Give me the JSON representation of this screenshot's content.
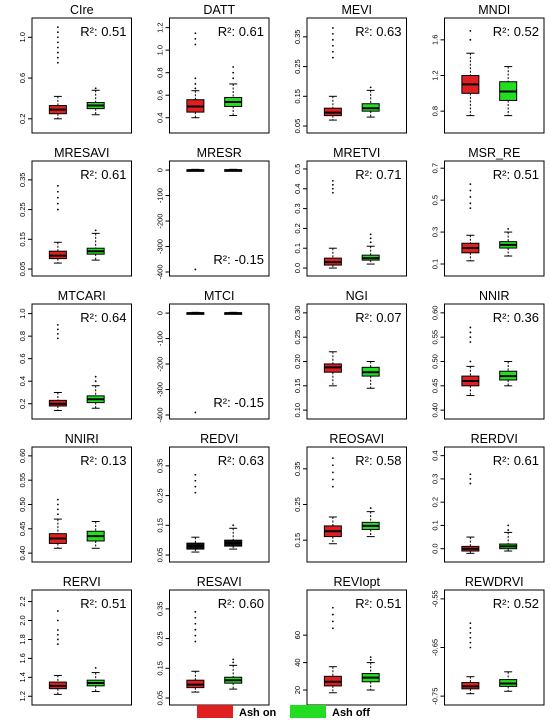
{
  "chart_data": {
    "type": "boxplot-grid",
    "legend": {
      "placement": "bottom-center",
      "items": [
        {
          "label": "Ash on",
          "color": "#e02020"
        },
        {
          "label": "Ash off",
          "color": "#22dd22"
        }
      ]
    },
    "panels": [
      {
        "title": "CIre",
        "r2": "R²: 0.51",
        "r2_pos": "top",
        "ylim": [
          0.1,
          1.15
        ],
        "ticks": [
          0.2,
          0.6,
          1.0
        ],
        "tick_labels": [
          "0.2",
          "0.6",
          "1.0"
        ],
        "groups": [
          {
            "fill": "red",
            "min": 0.2,
            "q1": 0.25,
            "median": 0.29,
            "q3": 0.33,
            "max": 0.42,
            "outliers": [
              0.75,
              0.8,
              0.85,
              0.9,
              0.95,
              1.0,
              1.05,
              1.1
            ]
          },
          {
            "fill": "green",
            "min": 0.24,
            "q1": 0.3,
            "median": 0.33,
            "q3": 0.36,
            "max": 0.48,
            "outliers": [
              0.5
            ]
          }
        ]
      },
      {
        "title": "DATT",
        "r2": "R²: 0.61",
        "r2_pos": "top",
        "ylim": [
          0.3,
          1.25
        ],
        "ticks": [
          0.4,
          0.6,
          0.8,
          1.0,
          1.2
        ],
        "tick_labels": [
          "0.4",
          "0.6",
          "0.8",
          "1.0",
          "1.2"
        ],
        "groups": [
          {
            "fill": "red",
            "min": 0.4,
            "q1": 0.45,
            "median": 0.5,
            "q3": 0.56,
            "max": 0.64,
            "outliers": [
              0.66,
              0.7,
              0.75,
              1.05,
              1.1,
              1.15
            ]
          },
          {
            "fill": "green",
            "min": 0.42,
            "q1": 0.5,
            "median": 0.54,
            "q3": 0.58,
            "max": 0.7,
            "outliers": [
              0.75,
              0.8,
              0.85
            ]
          }
        ]
      },
      {
        "title": "MEVI",
        "r2": "R²: 0.63",
        "r2_pos": "top",
        "ylim": [
          0.04,
          0.4
        ],
        "ticks": [
          0.05,
          0.15,
          0.25,
          0.35
        ],
        "tick_labels": [
          "0.05",
          "0.15",
          "0.25",
          "0.35"
        ],
        "groups": [
          {
            "fill": "red",
            "min": 0.07,
            "q1": 0.085,
            "median": 0.095,
            "q3": 0.11,
            "max": 0.15,
            "outliers": [
              0.28,
              0.3,
              0.32,
              0.34,
              0.36,
              0.38
            ]
          },
          {
            "fill": "green",
            "min": 0.08,
            "q1": 0.1,
            "median": 0.11,
            "q3": 0.125,
            "max": 0.17,
            "outliers": [
              0.18
            ]
          }
        ]
      },
      {
        "title": "MNDI",
        "r2": "R²: 0.52",
        "r2_pos": "top",
        "ylim": [
          0.6,
          1.8
        ],
        "ticks": [
          0.8,
          1.2,
          1.6
        ],
        "tick_labels": [
          "0.8",
          "1.2",
          "1.6"
        ],
        "groups": [
          {
            "fill": "red",
            "min": 0.75,
            "q1": 1.0,
            "median": 1.1,
            "q3": 1.2,
            "max": 1.45,
            "outliers": [
              1.6,
              1.7
            ]
          },
          {
            "fill": "green",
            "min": 0.75,
            "q1": 0.92,
            "median": 1.02,
            "q3": 1.13,
            "max": 1.3,
            "outliers": []
          }
        ]
      },
      {
        "title": "MRESAVI",
        "r2": "R²: 0.61",
        "r2_pos": "top",
        "ylim": [
          0.04,
          0.4
        ],
        "ticks": [
          0.05,
          0.15,
          0.25,
          0.35
        ],
        "tick_labels": [
          "0.05",
          "0.15",
          "0.25",
          "0.35"
        ],
        "groups": [
          {
            "fill": "red",
            "min": 0.07,
            "q1": 0.085,
            "median": 0.095,
            "q3": 0.11,
            "max": 0.14,
            "outliers": [
              0.25,
              0.27,
              0.29,
              0.31,
              0.33
            ]
          },
          {
            "fill": "green",
            "min": 0.08,
            "q1": 0.1,
            "median": 0.11,
            "q3": 0.12,
            "max": 0.17,
            "outliers": [
              0.18
            ]
          }
        ]
      },
      {
        "title": "MRESR",
        "r2": "R²: -0.15",
        "r2_pos": "bottom",
        "ylim": [
          -400,
          20
        ],
        "ticks": [
          0,
          -100,
          -200,
          -300,
          -400
        ],
        "tick_labels": [
          "0",
          "-100",
          "-200",
          "-300",
          "-400"
        ],
        "groups": [
          {
            "fill": "black",
            "min": -3,
            "q1": -1,
            "median": 0,
            "q3": 1,
            "max": 3,
            "outliers": [
              -390
            ]
          },
          {
            "fill": "black",
            "min": -3,
            "q1": -1,
            "median": 0,
            "q3": 1,
            "max": 3,
            "outliers": []
          }
        ]
      },
      {
        "title": "MRETVI",
        "r2": "R²: 0.71",
        "r2_pos": "top",
        "ylim": [
          -0.02,
          0.52
        ],
        "ticks": [
          0.0,
          0.1,
          0.2,
          0.3,
          0.4,
          0.5
        ],
        "tick_labels": [
          "0.0",
          "0.1",
          "0.2",
          "0.3",
          "0.4",
          "0.5"
        ],
        "groups": [
          {
            "fill": "red",
            "min": 0.0,
            "q1": 0.015,
            "median": 0.03,
            "q3": 0.05,
            "max": 0.1,
            "outliers": [
              0.38,
              0.4,
              0.42,
              0.44
            ]
          },
          {
            "fill": "green",
            "min": 0.02,
            "q1": 0.04,
            "median": 0.05,
            "q3": 0.065,
            "max": 0.11,
            "outliers": [
              0.13,
              0.15,
              0.17
            ]
          }
        ]
      },
      {
        "title": "MSR_RE",
        "r2": "R²: 0.51",
        "r2_pos": "top",
        "ylim": [
          0.05,
          0.72
        ],
        "ticks": [
          0.1,
          0.3,
          0.5,
          0.7
        ],
        "tick_labels": [
          "0.1",
          "0.3",
          "0.5",
          "0.7"
        ],
        "groups": [
          {
            "fill": "red",
            "min": 0.12,
            "q1": 0.17,
            "median": 0.2,
            "q3": 0.23,
            "max": 0.28,
            "outliers": [
              0.45,
              0.48,
              0.52,
              0.56,
              0.6
            ]
          },
          {
            "fill": "green",
            "min": 0.15,
            "q1": 0.2,
            "median": 0.22,
            "q3": 0.24,
            "max": 0.3,
            "outliers": [
              0.32
            ]
          }
        ]
      },
      {
        "title": "MTCARI",
        "r2": "R²: 0.64",
        "r2_pos": "top",
        "ylim": [
          0.1,
          1.05
        ],
        "ticks": [
          0.2,
          0.4,
          0.6,
          0.8,
          1.0
        ],
        "tick_labels": [
          "0.2",
          "0.4",
          "0.6",
          "0.8",
          "1.0"
        ],
        "groups": [
          {
            "fill": "red",
            "min": 0.14,
            "q1": 0.18,
            "median": 0.2,
            "q3": 0.23,
            "max": 0.3,
            "outliers": [
              0.78,
              0.82,
              0.86,
              0.9
            ]
          },
          {
            "fill": "green",
            "min": 0.16,
            "q1": 0.21,
            "median": 0.24,
            "q3": 0.27,
            "max": 0.36,
            "outliers": [
              0.4,
              0.44
            ]
          }
        ]
      },
      {
        "title": "MTCI",
        "r2": "R²: -0.15",
        "r2_pos": "bottom",
        "ylim": [
          -400,
          20
        ],
        "ticks": [
          0,
          -100,
          -200,
          -300,
          -400
        ],
        "tick_labels": [
          "0",
          "-100",
          "-200",
          "-300",
          "-400"
        ],
        "groups": [
          {
            "fill": "black",
            "min": -3,
            "q1": -1,
            "median": 0,
            "q3": 1,
            "max": 3,
            "outliers": [
              -390
            ]
          },
          {
            "fill": "black",
            "min": -3,
            "q1": -1,
            "median": 0,
            "q3": 1,
            "max": 3,
            "outliers": []
          }
        ]
      },
      {
        "title": "NGI",
        "r2": "R²: 0.07",
        "r2_pos": "top",
        "ylim": [
          0.09,
          0.31
        ],
        "ticks": [
          0.1,
          0.15,
          0.2,
          0.25,
          0.3
        ],
        "tick_labels": [
          "0.10",
          "0.15",
          "0.20",
          "0.25",
          "0.30"
        ],
        "groups": [
          {
            "fill": "red",
            "min": 0.15,
            "q1": 0.178,
            "median": 0.188,
            "q3": 0.195,
            "max": 0.22,
            "outliers": []
          },
          {
            "fill": "green",
            "min": 0.145,
            "q1": 0.17,
            "median": 0.178,
            "q3": 0.188,
            "max": 0.2,
            "outliers": []
          }
        ]
      },
      {
        "title": "NNIR",
        "r2": "R²: 0.36",
        "r2_pos": "top",
        "ylim": [
          0.39,
          0.61
        ],
        "ticks": [
          0.4,
          0.45,
          0.5,
          0.55,
          0.6
        ],
        "tick_labels": [
          "0.40",
          "0.45",
          "0.50",
          "0.55",
          "0.60"
        ],
        "groups": [
          {
            "fill": "red",
            "min": 0.43,
            "q1": 0.45,
            "median": 0.46,
            "q3": 0.47,
            "max": 0.49,
            "outliers": [
              0.5,
              0.54,
              0.55,
              0.56,
              0.57
            ]
          },
          {
            "fill": "green",
            "min": 0.45,
            "q1": 0.462,
            "median": 0.47,
            "q3": 0.48,
            "max": 0.5,
            "outliers": []
          }
        ]
      },
      {
        "title": "NNIRI",
        "r2": "R²: 0.13",
        "r2_pos": "top",
        "ylim": [
          0.39,
          0.61
        ],
        "ticks": [
          0.4,
          0.45,
          0.5,
          0.55,
          0.6
        ],
        "tick_labels": [
          "0.40",
          "0.45",
          "0.50",
          "0.55",
          "0.60"
        ],
        "groups": [
          {
            "fill": "red",
            "min": 0.41,
            "q1": 0.42,
            "median": 0.43,
            "q3": 0.44,
            "max": 0.47,
            "outliers": [
              0.48,
              0.49,
              0.5,
              0.51
            ]
          },
          {
            "fill": "green",
            "min": 0.41,
            "q1": 0.425,
            "median": 0.435,
            "q3": 0.445,
            "max": 0.465,
            "outliers": []
          }
        ]
      },
      {
        "title": "REDVI",
        "r2": "R²: 0.63",
        "r2_pos": "top",
        "ylim": [
          0.04,
          0.4
        ],
        "ticks": [
          0.05,
          0.15,
          0.25,
          0.35
        ],
        "tick_labels": [
          "0.05",
          "0.15",
          "0.25",
          "0.35"
        ],
        "groups": [
          {
            "fill": "black",
            "min": 0.06,
            "q1": 0.07,
            "median": 0.08,
            "q3": 0.09,
            "max": 0.11,
            "outliers": [
              0.26,
              0.28,
              0.3,
              0.32
            ]
          },
          {
            "fill": "black",
            "min": 0.07,
            "q1": 0.08,
            "median": 0.09,
            "q3": 0.1,
            "max": 0.14,
            "outliers": [
              0.15
            ]
          }
        ]
      },
      {
        "title": "REOSAVI",
        "r2": "R²: 0.58",
        "r2_pos": "top",
        "ylim": [
          0.1,
          0.4
        ],
        "ticks": [
          0.15,
          0.25,
          0.35
        ],
        "tick_labels": [
          "0.15",
          "0.25",
          "0.35"
        ],
        "groups": [
          {
            "fill": "red",
            "min": 0.14,
            "q1": 0.16,
            "median": 0.175,
            "q3": 0.19,
            "max": 0.215,
            "outliers": [
              0.3,
              0.32,
              0.34,
              0.36,
              0.38
            ]
          },
          {
            "fill": "green",
            "min": 0.16,
            "q1": 0.18,
            "median": 0.19,
            "q3": 0.2,
            "max": 0.23,
            "outliers": [
              0.24
            ]
          }
        ]
      },
      {
        "title": "RERDVI",
        "r2": "R²: 0.61",
        "r2_pos": "top",
        "ylim": [
          -0.04,
          0.42
        ],
        "ticks": [
          0.0,
          0.1,
          0.2,
          0.3,
          0.4
        ],
        "tick_labels": [
          "0.0",
          "0.1",
          "0.2",
          "0.3",
          "0.4"
        ],
        "groups": [
          {
            "fill": "red",
            "min": -0.02,
            "q1": -0.01,
            "median": 0.0,
            "q3": 0.01,
            "max": 0.05,
            "outliers": [
              0.28,
              0.3,
              0.32
            ]
          },
          {
            "fill": "green",
            "min": -0.01,
            "q1": 0.0,
            "median": 0.01,
            "q3": 0.02,
            "max": 0.07,
            "outliers": [
              0.08,
              0.1
            ]
          }
        ]
      },
      {
        "title": "RERVI",
        "r2": "R²: 0.51",
        "r2_pos": "top",
        "ylim": [
          1.15,
          2.28
        ],
        "ticks": [
          1.2,
          1.4,
          1.6,
          1.8,
          2.0,
          2.2
        ],
        "tick_labels": [
          "1.2",
          "1.4",
          "1.6",
          "1.8",
          "2.0",
          "2.2"
        ],
        "groups": [
          {
            "fill": "red",
            "min": 1.22,
            "q1": 1.28,
            "median": 1.31,
            "q3": 1.35,
            "max": 1.42,
            "outliers": [
              1.75,
              1.8,
              1.85,
              1.9,
              2.0,
              2.1
            ]
          },
          {
            "fill": "green",
            "min": 1.25,
            "q1": 1.31,
            "median": 1.34,
            "q3": 1.37,
            "max": 1.45,
            "outliers": [
              1.5
            ]
          }
        ]
      },
      {
        "title": "RESAVI",
        "r2": "R²: 0.60",
        "r2_pos": "top",
        "ylim": [
          0.04,
          0.4
        ],
        "ticks": [
          0.05,
          0.15,
          0.25,
          0.35
        ],
        "tick_labels": [
          "0.05",
          "0.15",
          "0.25",
          "0.35"
        ],
        "groups": [
          {
            "fill": "red",
            "min": 0.07,
            "q1": 0.085,
            "median": 0.095,
            "q3": 0.11,
            "max": 0.14,
            "outliers": [
              0.24,
              0.26,
              0.28,
              0.3,
              0.32,
              0.34
            ]
          },
          {
            "fill": "green",
            "min": 0.08,
            "q1": 0.1,
            "median": 0.11,
            "q3": 0.12,
            "max": 0.16,
            "outliers": [
              0.17,
              0.18
            ]
          }
        ]
      },
      {
        "title": "REVIopt",
        "r2": "R²: 0.51",
        "r2_pos": "top",
        "ylim": [
          12,
          90
        ],
        "ticks": [
          20,
          40,
          60
        ],
        "tick_labels": [
          "20",
          "40",
          "60"
        ],
        "groups": [
          {
            "fill": "red",
            "min": 18,
            "q1": 23,
            "median": 26,
            "q3": 30,
            "max": 37,
            "outliers": [
              65,
              70,
              75,
              80
            ]
          },
          {
            "fill": "green",
            "min": 20,
            "q1": 26,
            "median": 29,
            "q3": 32,
            "max": 40,
            "outliers": [
              42,
              44
            ]
          }
        ]
      },
      {
        "title": "REWDRVI",
        "r2": "R²: 0.52",
        "r2_pos": "top",
        "ylim": [
          -0.76,
          -0.54
        ],
        "ticks": [
          -0.55,
          -0.65,
          -0.75
        ],
        "tick_labels": [
          "-0.55",
          "-0.65",
          "-0.75"
        ],
        "groups": [
          {
            "fill": "red",
            "min": -0.745,
            "q1": -0.735,
            "median": -0.73,
            "q3": -0.722,
            "max": -0.71,
            "outliers": [
              -0.6,
              -0.61,
              -0.62,
              -0.63,
              -0.64,
              -0.65
            ]
          },
          {
            "fill": "green",
            "min": -0.74,
            "q1": -0.73,
            "median": -0.724,
            "q3": -0.716,
            "max": -0.7,
            "outliers": []
          }
        ]
      }
    ]
  }
}
